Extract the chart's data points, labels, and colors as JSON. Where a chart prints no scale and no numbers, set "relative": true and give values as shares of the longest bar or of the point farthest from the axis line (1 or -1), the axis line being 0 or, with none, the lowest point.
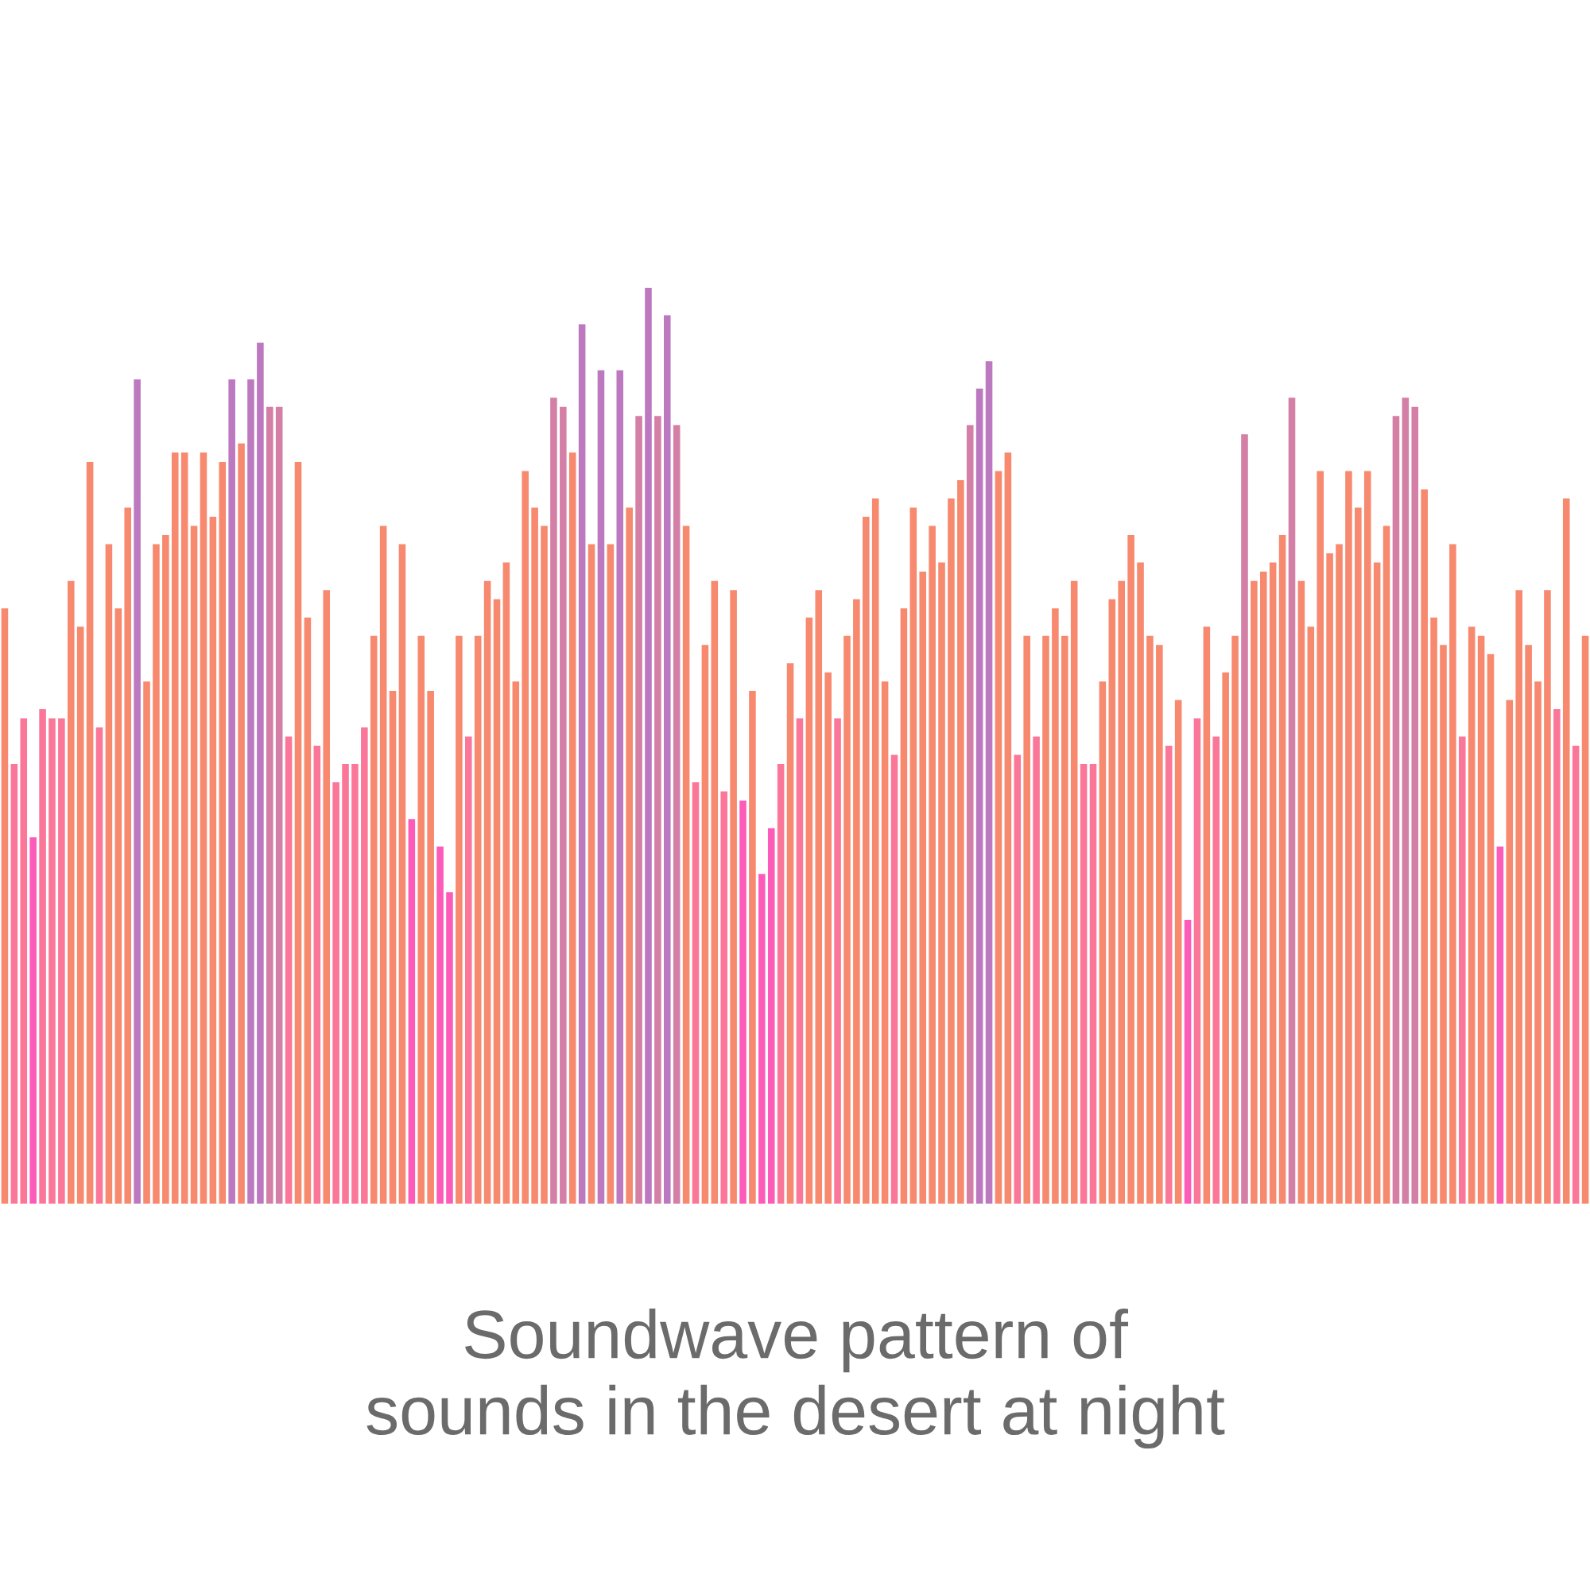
{
  "chart_data": {
    "type": "bar",
    "relative": true,
    "title": "Soundwave pattern of\nsounds in the desert at night",
    "categories": [
      null,
      null,
      null,
      null,
      null,
      null,
      null,
      null,
      null,
      null,
      null,
      null,
      null,
      null,
      null,
      null,
      null,
      null,
      null,
      null,
      null,
      null,
      null,
      null,
      null,
      null,
      null,
      null,
      null,
      null,
      null,
      null,
      null,
      null,
      null,
      null,
      null,
      null,
      null,
      null,
      null,
      null,
      null,
      null,
      null,
      null,
      null,
      null,
      null,
      null,
      null,
      null,
      null,
      null,
      null,
      null,
      null,
      null,
      null,
      null,
      null,
      null,
      null,
      null,
      null,
      null,
      null,
      null,
      null,
      null,
      null,
      null,
      null,
      null,
      null,
      null,
      null,
      null,
      null,
      null,
      null,
      null,
      null,
      null,
      null,
      null,
      null,
      null,
      null,
      null,
      null,
      null,
      null,
      null,
      null,
      null,
      null,
      null,
      null,
      null,
      null,
      null,
      null,
      null,
      null,
      null,
      null,
      null,
      null,
      null,
      null,
      null,
      null,
      null,
      null,
      null,
      null,
      null,
      null,
      null,
      null,
      null,
      null,
      null,
      null,
      null,
      null,
      null,
      null,
      null,
      null,
      null,
      null,
      null,
      null,
      null,
      null,
      null,
      null,
      null,
      null,
      null,
      null,
      null,
      null,
      null,
      null,
      null,
      null,
      null,
      null,
      null,
      null,
      null,
      null,
      null,
      null,
      null,
      null,
      null,
      null,
      null,
      null,
      null,
      null,
      null,
      null,
      null
    ],
    "values": [
      0.65,
      0.48,
      0.53,
      0.4,
      0.54,
      0.53,
      0.53,
      0.68,
      0.63,
      0.81,
      0.52,
      0.72,
      0.65,
      0.76,
      0.9,
      0.57,
      0.72,
      0.73,
      0.82,
      0.82,
      0.74,
      0.82,
      0.75,
      0.81,
      0.9,
      0.83,
      0.9,
      0.94,
      0.87,
      0.87,
      0.51,
      0.81,
      0.64,
      0.5,
      0.67,
      0.46,
      0.48,
      0.48,
      0.52,
      0.62,
      0.74,
      0.56,
      0.72,
      0.42,
      0.62,
      0.56,
      0.39,
      0.34,
      0.62,
      0.51,
      0.62,
      0.68,
      0.66,
      0.7,
      0.57,
      0.8,
      0.76,
      0.74,
      0.88,
      0.87,
      0.82,
      0.96,
      0.72,
      0.91,
      0.72,
      0.91,
      0.76,
      0.86,
      1.0,
      0.86,
      0.97,
      0.85,
      0.74,
      0.46,
      0.61,
      0.68,
      0.45,
      0.67,
      0.44,
      0.56,
      0.36,
      0.41,
      0.48,
      0.59,
      0.53,
      0.64,
      0.67,
      0.58,
      0.53,
      0.62,
      0.66,
      0.75,
      0.77,
      0.57,
      0.49,
      0.65,
      0.76,
      0.69,
      0.74,
      0.7,
      0.77,
      0.79,
      0.85,
      0.89,
      0.92,
      0.8,
      0.82,
      0.49,
      0.62,
      0.51,
      0.62,
      0.65,
      0.62,
      0.68,
      0.48,
      0.48,
      0.57,
      0.66,
      0.68,
      0.73,
      0.7,
      0.62,
      0.61,
      0.5,
      0.55,
      0.31,
      0.53,
      0.63,
      0.51,
      0.58,
      0.62,
      0.84,
      0.68,
      0.69,
      0.7,
      0.73,
      0.88,
      0.68,
      0.63,
      0.8,
      0.71,
      0.72,
      0.8,
      0.76,
      0.8,
      0.7,
      0.74,
      0.86,
      0.88,
      0.87,
      0.78,
      0.64,
      0.61,
      0.72,
      0.51,
      0.63,
      0.62,
      0.6,
      0.39,
      0.55,
      0.67,
      0.61,
      0.57,
      0.67,
      0.54,
      0.77,
      0.5,
      0.62
    ],
    "colors": [
      "#f7896f",
      "#fb7799",
      "#fb7799",
      "#fd5bb9",
      "#fb7799",
      "#fb7799",
      "#fb7799",
      "#f7896f",
      "#f7896f",
      "#f7896f",
      "#fb7799",
      "#f7896f",
      "#f7896f",
      "#f7896f",
      "#bd79c0",
      "#f7896f",
      "#f7896f",
      "#f7896f",
      "#f7896f",
      "#f7896f",
      "#f7896f",
      "#f7896f",
      "#f7896f",
      "#f7896f",
      "#bd79c0",
      "#f7896f",
      "#bd79c0",
      "#bd79c0",
      "#d47fa6",
      "#d47fa6",
      "#fb7799",
      "#f7896f",
      "#f7896f",
      "#fb7799",
      "#f7896f",
      "#fb7799",
      "#fb7799",
      "#fb7799",
      "#fb7799",
      "#f7896f",
      "#f7896f",
      "#f7896f",
      "#f7896f",
      "#fd5bb9",
      "#f7896f",
      "#f7896f",
      "#fd5bb9",
      "#fd5bb9",
      "#f7896f",
      "#fb7799",
      "#f7896f",
      "#f7896f",
      "#f7896f",
      "#f7896f",
      "#f7896f",
      "#f7896f",
      "#f7896f",
      "#f7896f",
      "#d47fa6",
      "#d47fa6",
      "#f7896f",
      "#bd79c0",
      "#f7896f",
      "#bd79c0",
      "#f7896f",
      "#bd79c0",
      "#f7896f",
      "#d47fa6",
      "#bd79c0",
      "#d47fa6",
      "#bd79c0",
      "#d47fa6",
      "#f7896f",
      "#fb7799",
      "#f7896f",
      "#f7896f",
      "#fb7799",
      "#f7896f",
      "#fd5bb9",
      "#f7896f",
      "#fd5bb9",
      "#fd5bb9",
      "#fb7799",
      "#f7896f",
      "#fb7799",
      "#f7896f",
      "#f7896f",
      "#f7896f",
      "#fb7799",
      "#f7896f",
      "#f7896f",
      "#f7896f",
      "#f7896f",
      "#f7896f",
      "#fb7799",
      "#f7896f",
      "#f7896f",
      "#f7896f",
      "#f7896f",
      "#f7896f",
      "#f7896f",
      "#f7896f",
      "#d47fa6",
      "#bd79c0",
      "#bd79c0",
      "#f7896f",
      "#f7896f",
      "#fb7799",
      "#f7896f",
      "#fb7799",
      "#f7896f",
      "#f7896f",
      "#f7896f",
      "#f7896f",
      "#fb7799",
      "#fb7799",
      "#f7896f",
      "#f7896f",
      "#f7896f",
      "#f7896f",
      "#f7896f",
      "#f7896f",
      "#f7896f",
      "#fb7799",
      "#f7896f",
      "#fd5bb9",
      "#fb7799",
      "#f7896f",
      "#fb7799",
      "#f7896f",
      "#f7896f",
      "#d47fa6",
      "#f7896f",
      "#f7896f",
      "#f7896f",
      "#f7896f",
      "#d47fa6",
      "#f7896f",
      "#f7896f",
      "#f7896f",
      "#f7896f",
      "#f7896f",
      "#f7896f",
      "#f7896f",
      "#f7896f",
      "#f7896f",
      "#f7896f",
      "#d47fa6",
      "#d47fa6",
      "#d47fa6",
      "#f7896f",
      "#f7896f",
      "#f7896f",
      "#f7896f",
      "#fb7799",
      "#f7896f",
      "#f7896f",
      "#f7896f",
      "#fd5bb9",
      "#f7896f",
      "#f7896f",
      "#f7896f",
      "#f7896f",
      "#f7896f",
      "#fb7799",
      "#f7896f",
      "#fb7799",
      "#f7896f"
    ]
  }
}
